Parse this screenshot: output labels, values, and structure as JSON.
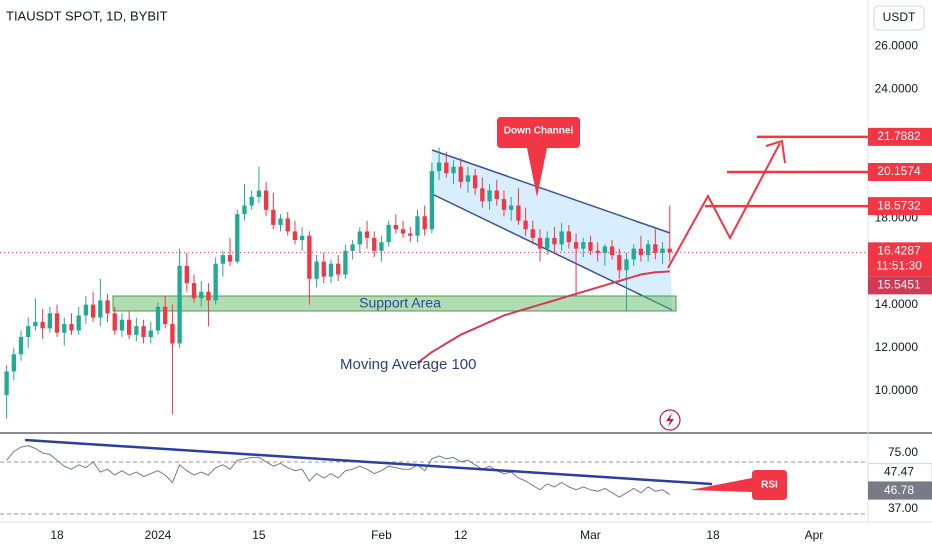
{
  "header": {
    "symbol": "TIAUSDT SPOT, 1D, BYBIT",
    "currency": "USDT"
  },
  "chart_data": {
    "type": "candlestick",
    "categories": [
      null,
      null,
      null,
      null,
      null,
      null,
      null,
      "18",
      null,
      null,
      null,
      null,
      null,
      null,
      null,
      null,
      null,
      null,
      null,
      null,
      null,
      "2024",
      null,
      null,
      null,
      null,
      null,
      null,
      null,
      null,
      null,
      null,
      null,
      null,
      null,
      "15",
      null,
      null,
      null,
      null,
      null,
      null,
      null,
      null,
      null,
      null,
      null,
      null,
      null,
      null,
      null,
      null,
      "Feb",
      null,
      null,
      null,
      null,
      null,
      null,
      null,
      null,
      null,
      null,
      "12",
      null,
      null,
      null,
      null,
      null,
      null,
      null,
      null,
      null,
      null,
      null,
      null,
      null,
      null,
      null,
      null,
      null,
      "Mar",
      null,
      null,
      null,
      null,
      null,
      null,
      null,
      null,
      null,
      null,
      null,
      null,
      null,
      null,
      null,
      null,
      "18",
      null,
      null,
      null,
      null,
      null,
      null,
      null,
      null,
      null,
      null,
      null,
      null,
      null,
      "Apr",
      null,
      null,
      null,
      null,
      null,
      null,
      null
    ],
    "open": [
      9.8,
      10.9,
      11.7,
      12.5,
      13.0,
      13.2,
      12.9,
      13.6,
      12.7,
      13.1,
      12.8,
      13.5,
      14.0,
      13.4,
      14.2,
      13.6,
      12.8,
      13.3,
      12.6,
      13.0,
      12.5,
      12.8,
      13.9,
      13.1,
      12.2,
      15.8,
      15.0,
      14.3,
      14.6,
      14.2,
      15.9,
      16.3,
      16.0,
      18.2,
      18.6,
      19.0,
      19.3,
      18.4,
      17.7,
      18.0,
      17.4,
      17.0,
      17.2,
      15.2,
      16.0,
      15.3,
      15.9,
      15.4,
      16.5,
      16.8,
      17.4,
      17.1,
      16.5,
      16.9,
      17.7,
      17.5,
      17.3,
      17.2,
      18.1,
      17.5,
      20.2,
      20.6,
      20.1,
      20.4,
      19.7,
      20.0,
      19.4,
      18.8,
      19.3,
      18.9,
      18.4,
      18.6,
      17.9,
      17.5,
      17.1,
      16.6,
      17.1,
      16.8,
      17.4,
      16.9,
      16.6,
      16.9,
      16.5,
      16.4,
      16.7,
      16.3,
      15.6,
      16.1,
      16.6,
      16.3,
      16.8,
      16.4,
      16.6,
      null,
      null,
      null,
      null,
      null,
      null,
      null,
      null,
      null,
      null,
      null,
      null,
      null,
      null,
      null,
      null,
      null,
      null,
      null,
      null,
      null,
      null,
      null,
      null,
      null,
      null,
      null
    ],
    "high": [
      11.2,
      12.0,
      12.8,
      13.4,
      14.3,
      13.8,
      13.9,
      14.0,
      13.4,
      13.6,
      13.9,
      14.4,
      14.6,
      15.2,
      14.5,
      13.9,
      13.6,
      13.7,
      13.4,
      13.3,
      13.2,
      14.1,
      14.4,
      14.0,
      16.6,
      16.4,
      15.4,
      15.1,
      15.0,
      16.2,
      16.5,
      17.1,
      18.4,
      19.6,
      19.3,
      20.4,
      19.7,
      19.2,
      18.2,
      18.3,
      17.9,
      17.6,
      17.4,
      16.3,
      16.4,
      16.1,
      16.3,
      16.8,
      17.0,
      17.6,
      17.9,
      17.4,
      17.2,
      17.9,
      18.2,
      17.9,
      17.6,
      18.4,
      18.6,
      20.6,
      21.3,
      21.1,
      20.7,
      20.8,
      20.4,
      20.3,
      19.9,
      19.6,
      19.8,
      19.3,
      19.0,
      19.4,
      18.5,
      17.9,
      17.5,
      17.4,
      17.6,
      17.8,
      17.7,
      17.3,
      17.1,
      17.2,
      16.9,
      16.8,
      17.0,
      16.6,
      16.4,
      16.8,
      17.2,
      17.0,
      17.5,
      16.9,
      18.6,
      null,
      null,
      null,
      null,
      null,
      null,
      null,
      null,
      null,
      null,
      null,
      null,
      null,
      null,
      null,
      null,
      null,
      null,
      null,
      null,
      null,
      null,
      null,
      null,
      null,
      null,
      null
    ],
    "low": [
      8.7,
      10.5,
      11.4,
      12.0,
      12.8,
      12.4,
      12.7,
      12.5,
      12.1,
      12.6,
      12.6,
      13.1,
      13.2,
      13.0,
      13.2,
      12.6,
      12.5,
      12.4,
      12.3,
      12.2,
      12.2,
      12.6,
      12.9,
      8.9,
      12.0,
      14.6,
      14.1,
      13.9,
      13.0,
      14.0,
      15.3,
      15.8,
      15.9,
      17.9,
      18.4,
      18.7,
      18.1,
      17.5,
      17.4,
      17.2,
      16.8,
      16.5,
      14.0,
      14.8,
      15.0,
      15.0,
      15.1,
      15.2,
      16.1,
      16.4,
      16.6,
      16.2,
      16.0,
      16.7,
      17.3,
      17.1,
      16.9,
      16.9,
      17.2,
      17.3,
      19.8,
      19.9,
      19.6,
      19.4,
      19.2,
      19.1,
      18.5,
      18.4,
      18.6,
      18.1,
      17.9,
      17.7,
      17.2,
      16.8,
      16.0,
      16.3,
      16.4,
      16.5,
      16.6,
      14.4,
      16.2,
      16.3,
      16.0,
      15.8,
      16.1,
      15.2,
      13.7,
      15.8,
      16.0,
      16.0,
      16.1,
      15.9,
      16.0,
      null,
      null,
      null,
      null,
      null,
      null,
      null,
      null,
      null,
      null,
      null,
      null,
      null,
      null,
      null,
      null,
      null,
      null,
      null,
      null,
      null,
      null,
      null,
      null,
      null,
      null,
      null
    ],
    "close": [
      10.9,
      11.7,
      12.5,
      13.0,
      13.2,
      12.9,
      13.6,
      12.7,
      13.1,
      12.8,
      13.5,
      14.0,
      13.4,
      14.2,
      13.6,
      12.8,
      13.3,
      12.6,
      13.0,
      12.5,
      12.8,
      13.9,
      13.1,
      12.2,
      15.8,
      15.0,
      14.3,
      14.6,
      14.2,
      15.9,
      16.3,
      16.0,
      18.2,
      18.6,
      19.0,
      19.3,
      18.4,
      17.7,
      18.0,
      17.4,
      17.0,
      17.2,
      15.2,
      16.0,
      15.3,
      15.9,
      15.4,
      16.5,
      16.8,
      17.4,
      17.1,
      16.5,
      16.9,
      17.7,
      17.5,
      17.3,
      17.2,
      18.1,
      17.5,
      20.2,
      20.6,
      20.1,
      20.4,
      19.7,
      20.0,
      19.4,
      18.8,
      19.3,
      18.9,
      18.4,
      18.6,
      17.9,
      17.5,
      17.1,
      16.6,
      17.1,
      16.8,
      17.4,
      16.9,
      16.6,
      16.9,
      16.5,
      16.4,
      16.7,
      16.3,
      15.6,
      16.1,
      16.6,
      16.3,
      16.8,
      16.4,
      16.6,
      16.4287,
      null,
      null,
      null,
      null,
      null,
      null,
      null,
      null,
      null,
      null,
      null,
      null,
      null,
      null,
      null,
      null,
      null,
      null,
      null,
      null,
      null,
      null,
      null,
      null,
      null,
      null,
      null
    ],
    "colors": {
      "up": "#22ab94",
      "down": "#f23645"
    },
    "ylim": [
      8.09,
      28.14
    ],
    "yticks": [
      {
        "value": 10,
        "label": "10.0000"
      },
      {
        "value": 12,
        "label": "12.0000"
      },
      {
        "value": 14,
        "label": "14.0000"
      },
      {
        "value": 18,
        "label": "18.0000"
      },
      {
        "value": 24,
        "label": "24.0000"
      },
      {
        "value": 26,
        "label": "26.0000"
      }
    ],
    "moving_average": {
      "name": "Moving Average 100",
      "color": "#d23a55",
      "values": [
        null,
        null,
        null,
        null,
        null,
        null,
        null,
        null,
        null,
        null,
        null,
        null,
        null,
        null,
        null,
        null,
        null,
        null,
        null,
        null,
        null,
        null,
        null,
        null,
        null,
        null,
        null,
        null,
        null,
        null,
        null,
        null,
        null,
        null,
        null,
        null,
        null,
        null,
        null,
        null,
        null,
        null,
        null,
        null,
        null,
        null,
        null,
        null,
        null,
        null,
        null,
        null,
        null,
        null,
        null,
        null,
        null,
        11.3,
        11.55,
        11.8,
        12.0,
        12.2,
        12.4,
        12.6,
        12.75,
        12.9,
        13.05,
        13.2,
        13.35,
        13.5,
        13.6,
        13.7,
        13.8,
        13.9,
        14.0,
        14.1,
        14.2,
        14.3,
        14.4,
        14.5,
        14.6,
        14.7,
        14.8,
        14.9,
        15.0,
        15.1,
        15.2,
        15.3,
        15.4,
        15.45,
        15.5,
        15.52,
        15.5451,
        null,
        null,
        null,
        null,
        null,
        null,
        null,
        null,
        null,
        null,
        null,
        null,
        null,
        null,
        null,
        null,
        null,
        null,
        null,
        null,
        null,
        null,
        null,
        null,
        null,
        null,
        null
      ]
    },
    "targets": [
      21.7882,
      20.1574,
      18.5732
    ],
    "countdown": "11:51:30",
    "annotations": {
      "channel": "Down Channel",
      "support": "Support Area",
      "rsi": "RSI"
    },
    "rsi": {
      "color": "#787b86",
      "ylim": [
        28.2,
        86.5
      ],
      "yticks": [
        {
          "value": 75,
          "label": "75.00"
        },
        {
          "value": 37,
          "label": "37.00"
        }
      ],
      "ma_last": 47.47,
      "values": [
        70,
        76,
        79,
        80,
        78,
        75,
        74,
        70,
        66,
        64,
        67,
        65,
        69,
        62,
        64,
        60,
        63,
        60,
        62,
        59,
        61,
        63,
        60,
        55,
        67,
        63,
        60,
        62,
        60,
        65,
        67,
        64,
        70,
        71,
        72,
        72,
        69,
        66,
        68,
        65,
        63,
        64,
        56,
        61,
        58,
        61,
        58,
        63,
        64,
        66,
        64,
        61,
        63,
        66,
        65,
        64,
        64,
        67,
        63,
        71,
        73,
        71,
        72,
        69,
        70,
        67,
        64,
        66,
        63,
        61,
        62,
        58,
        56,
        53,
        50,
        54,
        52,
        55,
        52,
        50,
        52,
        50,
        49,
        51,
        48,
        45,
        48,
        51,
        48,
        52,
        49,
        50,
        46.78,
        null,
        null,
        null,
        null,
        null,
        null,
        null,
        null,
        null,
        null,
        null,
        null,
        null,
        null,
        null,
        null,
        null,
        null,
        null,
        null,
        null,
        null,
        null,
        null,
        null,
        null,
        null
      ]
    }
  }
}
